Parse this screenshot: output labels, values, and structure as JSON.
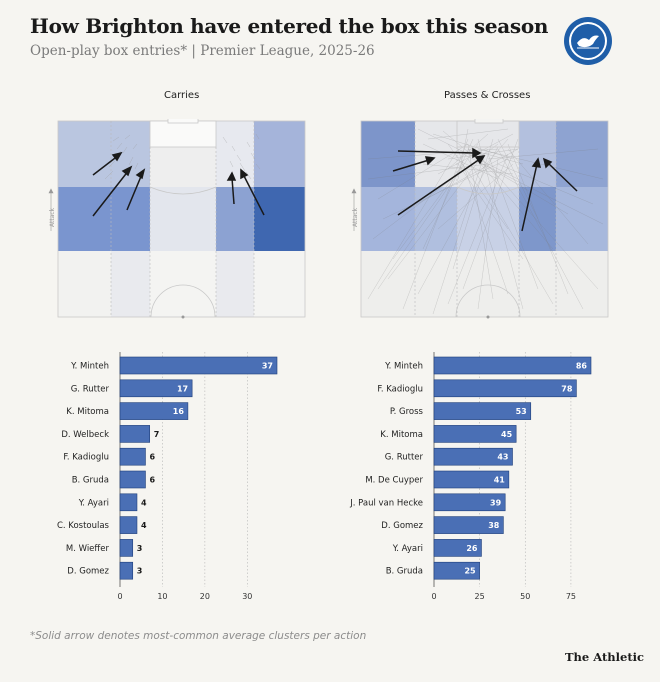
{
  "header": {
    "title": "How Brighton have entered the box this season",
    "subtitle": "Open-play box entries* | Premier League, 2025-26"
  },
  "pitch_label": "Attack",
  "footnote": "*Solid arrow denotes most-common average clusters per action",
  "brand": "The Athletic",
  "colors": {
    "bar": "#4a6fb5",
    "zone_light": "#b4c1dd",
    "zone_mid": "#7f97ca",
    "zone_dark": "#3f67b0",
    "background": "#f6f5f1"
  },
  "chart_data": [
    {
      "type": "bar",
      "orientation": "horizontal",
      "title": "Carries",
      "categories": [
        "Y. Minteh",
        "G. Rutter",
        "K. Mitoma",
        "D. Welbeck",
        "F. Kadioglu",
        "B. Gruda",
        "Y. Ayari",
        "C. Kostoulas",
        "M. Wieffer",
        "D. Gomez"
      ],
      "values": [
        37,
        17,
        16,
        7,
        6,
        6,
        4,
        4,
        3,
        3
      ],
      "xlim": [
        0,
        37
      ],
      "xticks": [
        0,
        10,
        20,
        30
      ],
      "grid": true
    },
    {
      "type": "bar",
      "orientation": "horizontal",
      "title": "Passes & Crosses",
      "categories": [
        "Y. Minteh",
        "F. Kadioglu",
        "P. Gross",
        "K. Mitoma",
        "G. Rutter",
        "M. De Cuyper",
        "J. Paul van Hecke",
        "D. Gomez",
        "Y. Ayari",
        "B. Gruda"
      ],
      "values": [
        86,
        78,
        53,
        45,
        43,
        41,
        39,
        38,
        26,
        25
      ],
      "xlim": [
        0,
        86
      ],
      "xticks": [
        0,
        25,
        50,
        75
      ],
      "grid": true
    }
  ]
}
